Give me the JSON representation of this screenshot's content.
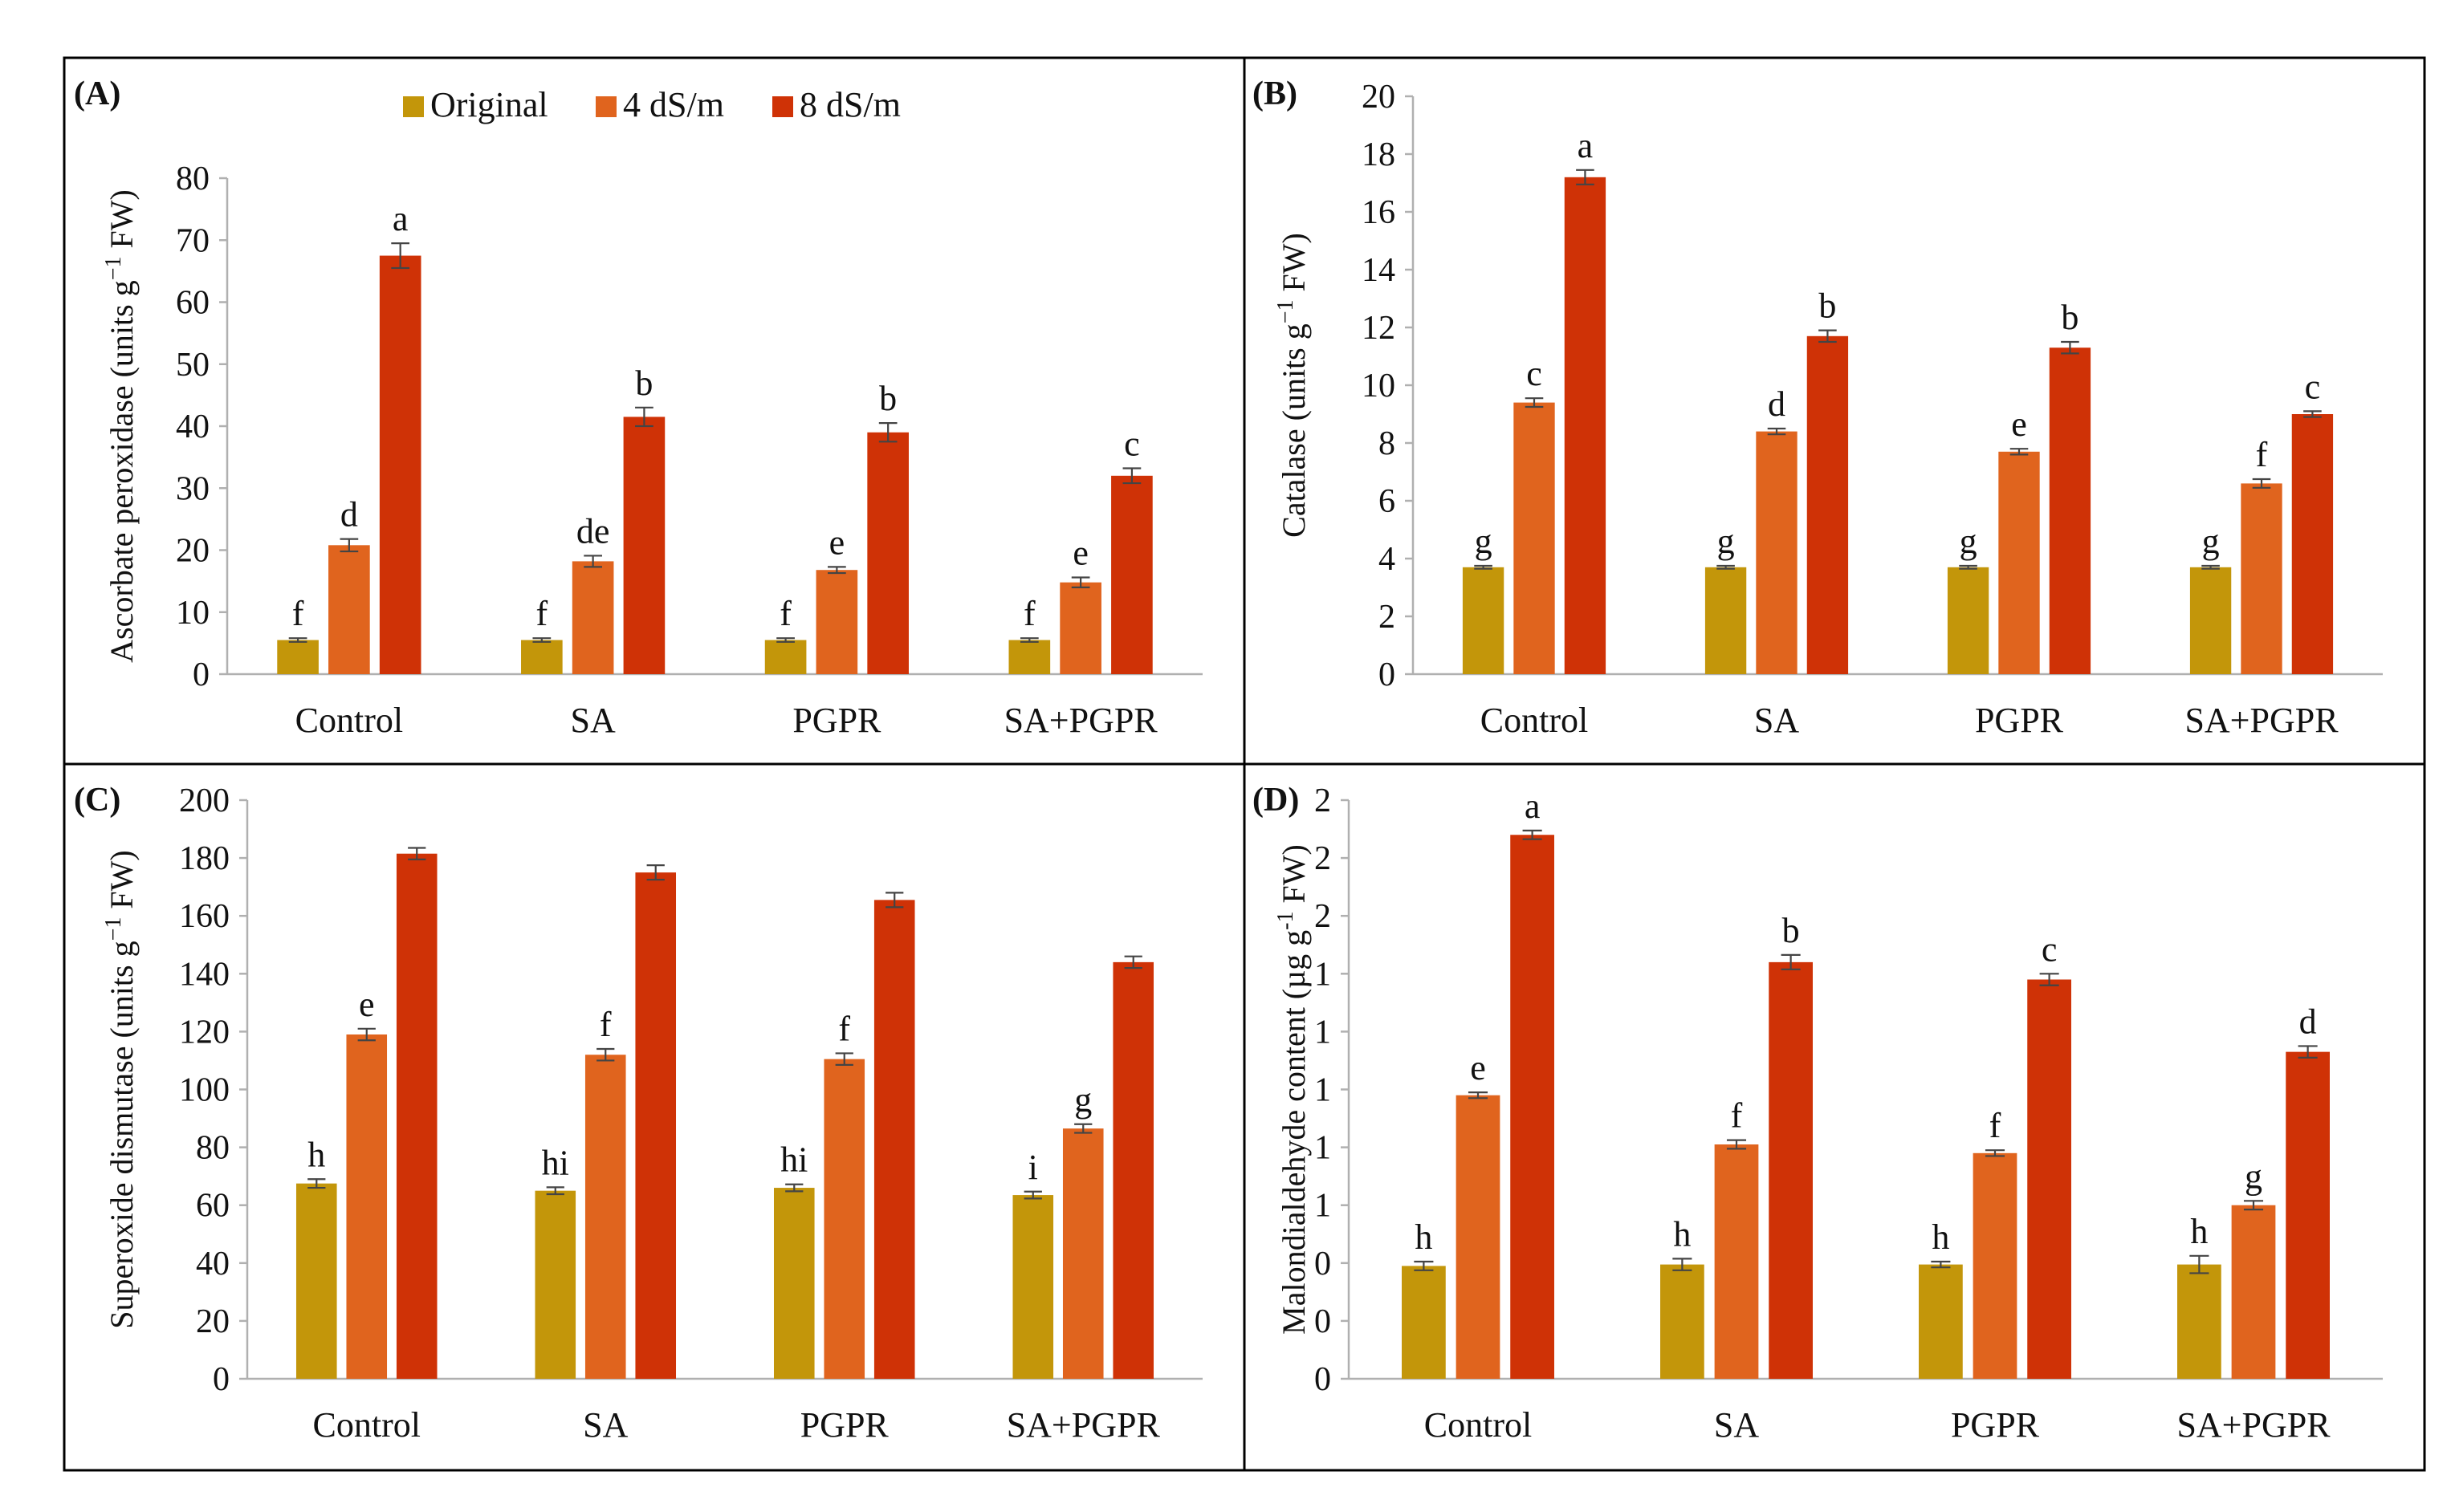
{
  "colors": {
    "original": "#c3960a",
    "ds4": "#e0641e",
    "ds8": "#cf3206"
  },
  "legend": [
    {
      "key": "original",
      "label": "Original"
    },
    {
      "key": "ds4",
      "label": "4 dS/m"
    },
    {
      "key": "ds8",
      "label": "8 dS/m"
    }
  ],
  "chart_data": [
    {
      "id": "A",
      "panel_label": "(A)",
      "type": "bar",
      "ylabel": "Ascorbate peroxidase (units g",
      "ylabel_sup": "−1",
      "ylabel_end": " FW)",
      "ylim": [
        0,
        80
      ],
      "yticks": [
        0,
        10,
        20,
        30,
        40,
        50,
        60,
        70,
        80
      ],
      "categories": [
        "Control",
        "SA",
        "PGPR",
        "SA+PGPR"
      ],
      "series": [
        {
          "key": "original",
          "name": "Original",
          "values": [
            5.5,
            5.5,
            5.5,
            5.5
          ],
          "errors": [
            0.3,
            0.3,
            0.3,
            0.3
          ],
          "letters": [
            "f",
            "f",
            "f",
            "f"
          ]
        },
        {
          "key": "ds4",
          "name": "4 dS/m",
          "values": [
            20.8,
            18.2,
            16.8,
            14.8
          ],
          "errors": [
            1.0,
            0.9,
            0.5,
            0.8
          ],
          "letters": [
            "d",
            "de",
            "e",
            "e"
          ]
        },
        {
          "key": "ds8",
          "name": "8 dS/m",
          "values": [
            67.5,
            41.5,
            39.0,
            32.0
          ],
          "errors": [
            2.0,
            1.5,
            1.5,
            1.2
          ],
          "letters": [
            "a",
            "b",
            "b",
            "c"
          ]
        }
      ]
    },
    {
      "id": "B",
      "panel_label": "(B)",
      "type": "bar",
      "ylabel": "Catalase (units g",
      "ylabel_sup": "−1",
      "ylabel_end": " FW)",
      "ylim": [
        0,
        20
      ],
      "yticks": [
        0,
        2,
        4,
        6,
        8,
        10,
        12,
        14,
        16,
        18,
        20
      ],
      "categories": [
        "Control",
        "SA",
        "PGPR",
        "SA+PGPR"
      ],
      "series": [
        {
          "key": "original",
          "name": "Original",
          "values": [
            3.7,
            3.7,
            3.7,
            3.7
          ],
          "errors": [
            0.05,
            0.05,
            0.05,
            0.05
          ],
          "letters": [
            "g",
            "g",
            "g",
            "g"
          ]
        },
        {
          "key": "ds4",
          "name": "4 dS/m",
          "values": [
            9.4,
            8.4,
            7.7,
            6.6
          ],
          "errors": [
            0.15,
            0.1,
            0.1,
            0.15
          ],
          "letters": [
            "c",
            "d",
            "e",
            "f"
          ]
        },
        {
          "key": "ds8",
          "name": "8 dS/m",
          "values": [
            17.2,
            11.7,
            11.3,
            9.0
          ],
          "errors": [
            0.25,
            0.2,
            0.2,
            0.1
          ],
          "letters": [
            "a",
            "b",
            "b",
            "c"
          ]
        }
      ]
    },
    {
      "id": "C",
      "panel_label": "(C)",
      "type": "bar",
      "ylabel": "Superoxide dismutase (units g",
      "ylabel_sup": "−1",
      "ylabel_end": " FW)",
      "ylim": [
        0,
        200
      ],
      "yticks": [
        0,
        20,
        40,
        60,
        80,
        100,
        120,
        140,
        160,
        180,
        200
      ],
      "categories": [
        "Control",
        "SA",
        "PGPR",
        "SA+PGPR"
      ],
      "series": [
        {
          "key": "original",
          "name": "Original",
          "values": [
            67.5,
            65.0,
            66.0,
            63.5
          ],
          "errors": [
            1.5,
            1.2,
            1.2,
            1.2
          ],
          "letters": [
            "h",
            "hi",
            "hi",
            "i"
          ]
        },
        {
          "key": "ds4",
          "name": "4 dS/m",
          "values": [
            119.0,
            112.0,
            110.5,
            86.5
          ],
          "errors": [
            2.0,
            2.0,
            2.0,
            1.5
          ],
          "letters": [
            "e",
            "f",
            "f",
            "g"
          ]
        },
        {
          "key": "ds8",
          "name": "8 dS/m",
          "values": [
            181.5,
            175.0,
            165.5,
            144.0
          ],
          "errors": [
            2.0,
            2.5,
            2.5,
            2.0
          ],
          "letters": [
            null,
            null,
            null,
            null
          ]
        }
      ]
    },
    {
      "id": "D",
      "panel_label": "(D)",
      "type": "bar",
      "ylabel": "Malondialdehyde content (µg g",
      "ylabel_sup": "-1",
      "ylabel_end": " FW)",
      "ylim": [
        0,
        2.0
      ],
      "yticks": [
        0,
        0.2,
        0.4,
        0.6,
        0.8,
        1.0,
        1.2,
        1.4,
        1.6,
        1.8,
        2.0
      ],
      "ytick_labels": [
        "0",
        "0",
        "0",
        "1",
        "1",
        "1",
        "1",
        "1",
        "2",
        "2",
        "2"
      ],
      "categories": [
        "Control",
        "SA",
        "PGPR",
        "SA+PGPR"
      ],
      "series": [
        {
          "key": "original",
          "name": "Original",
          "values": [
            0.39,
            0.395,
            0.395,
            0.395
          ],
          "errors": [
            0.015,
            0.02,
            0.01,
            0.03
          ],
          "letters": [
            "h",
            "h",
            "h",
            "h"
          ]
        },
        {
          "key": "ds4",
          "name": "4 dS/m",
          "values": [
            0.98,
            0.81,
            0.78,
            0.6
          ],
          "errors": [
            0.01,
            0.015,
            0.01,
            0.015
          ],
          "letters": [
            "e",
            "f",
            "f",
            "g"
          ]
        },
        {
          "key": "ds8",
          "name": "8 dS/m",
          "values": [
            1.88,
            1.44,
            1.38,
            1.13
          ],
          "errors": [
            0.015,
            0.025,
            0.02,
            0.02
          ],
          "letters": [
            "a",
            "b",
            "c",
            "d"
          ]
        }
      ]
    }
  ]
}
